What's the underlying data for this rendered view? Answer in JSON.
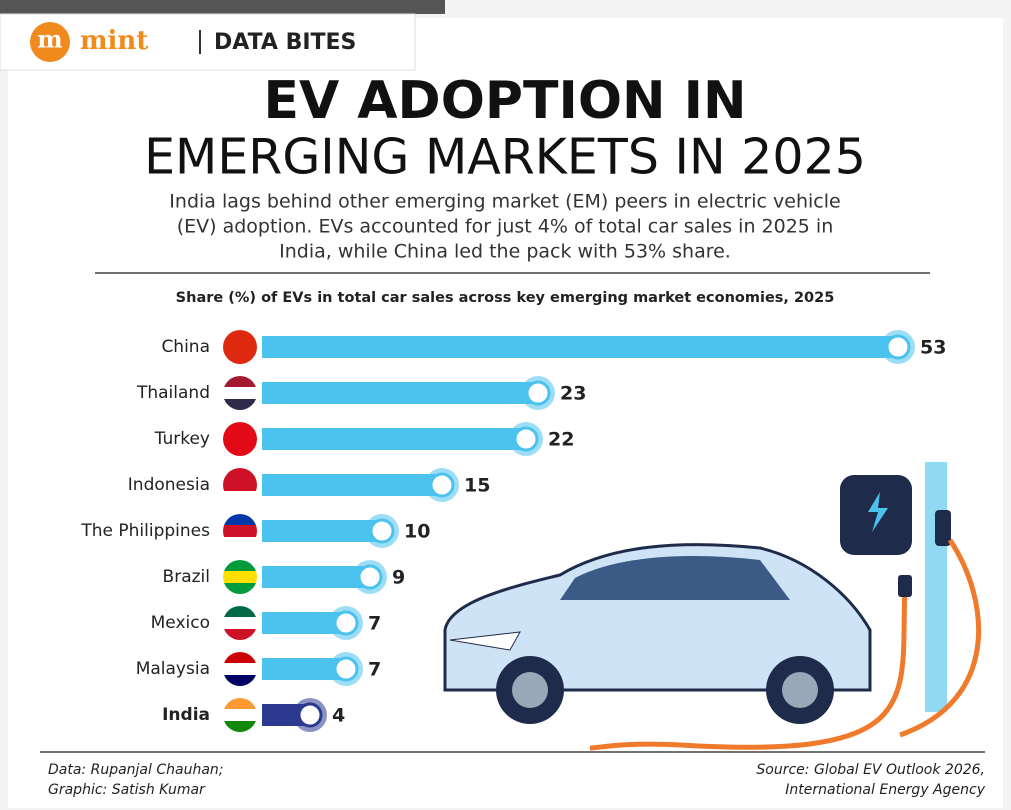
{
  "logo": "m",
  "brand": "mint",
  "section": "DATA BITES",
  "chart_data": {
    "type": "bar",
    "orientation": "horizontal",
    "title": [
      "EV ADOPTION IN",
      "EMERGING MARKETS IN 2025"
    ],
    "subtitle": [
      "India lags behind other emerging market (EM) peers in electric vehicle",
      "(EV) adoption. EVs accounted for just 4% of total car sales in 2025 in",
      "India, while China led the pack with 53% share."
    ],
    "chart_title": "Share (%) of EVs in total car sales across key emerging market economies, 2025",
    "categories": [
      "China",
      "Thailand",
      "Turkey",
      "Indonesia",
      "The Philippines",
      "Brazil",
      "Mexico",
      "Malaysia",
      "India"
    ],
    "values": [
      53,
      23,
      22,
      15,
      10,
      9,
      7,
      7,
      4
    ],
    "colors": [
      "#4cc2ee",
      "#4cc2ee",
      "#4cc2ee",
      "#4cc2ee",
      "#4cc2ee",
      "#4cc2ee",
      "#4cc2ee",
      "#4cc2ee",
      "#2b3a8f"
    ],
    "credits": [
      "Data: Rupanjal Chauhan;",
      "Graphic: Satish Kumar"
    ],
    "source": [
      "Source: Global EV Outlook 2026,",
      "International Energy Agency"
    ]
  }
}
